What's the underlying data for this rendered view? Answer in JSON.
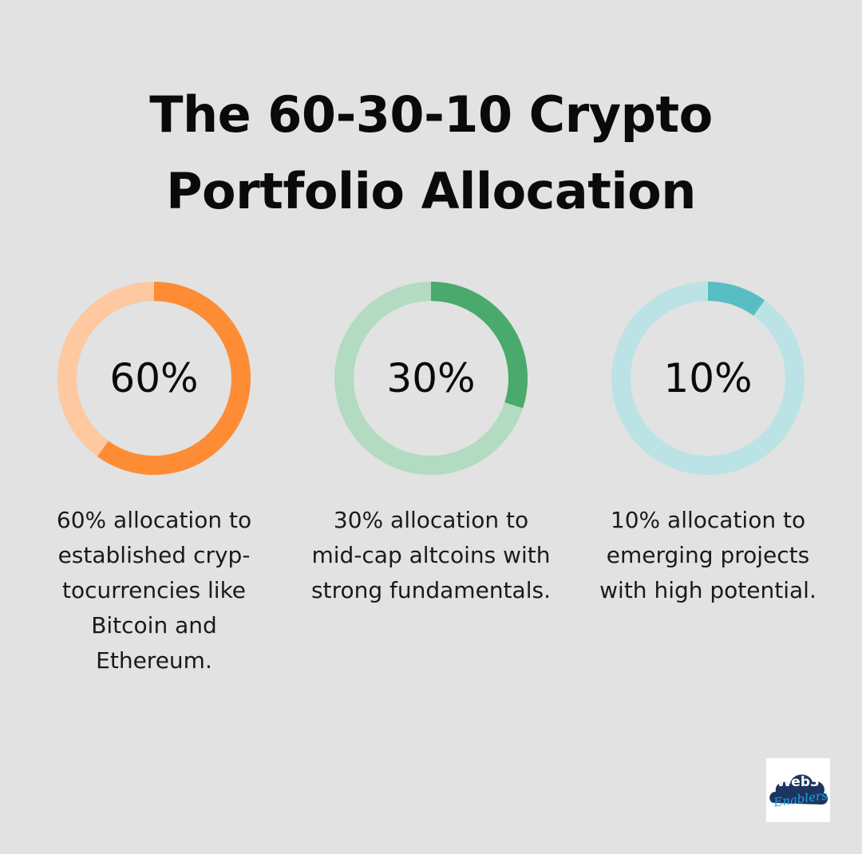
{
  "title": {
    "line1": "The 60-30-10 Crypto",
    "line2": "Portfolio Allocation"
  },
  "chart_data": {
    "type": "pie",
    "charts": [
      {
        "value": 60,
        "label": "60%",
        "description": [
          "60% allocation to",
          "established cryp-",
          "tocurrencies like",
          "Bitcoin and",
          "Ethereum."
        ],
        "color": "#fd8c35",
        "track_color": "#fec8a0"
      },
      {
        "value": 30,
        "label": "30%",
        "description": [
          "30% allocation to",
          "mid-cap altcoins with",
          "strong fundamentals."
        ],
        "color": "#4aa96c",
        "track_color": "#b2dbc1"
      },
      {
        "value": 10,
        "label": "10%",
        "description": [
          "10% allocation to",
          "emerging projects",
          "with high potential."
        ],
        "color": "#59bec3",
        "track_color": "#bbe3e5"
      }
    ]
  },
  "logo": {
    "text": "Web3",
    "subtext": "Enablers",
    "color": "#1d3461"
  }
}
